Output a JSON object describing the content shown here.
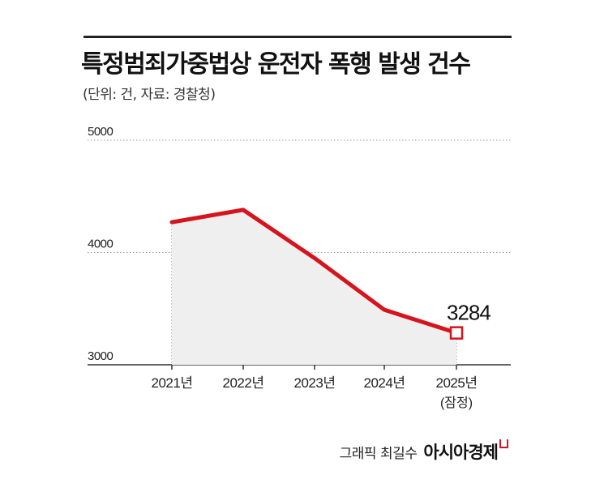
{
  "title": "특정범죄가중법상 운전자 폭행 발생 건수",
  "subtitle": "(단위: 건, 자료: 경찰청)",
  "credit": {
    "author": "그래픽 최길수",
    "logo": "아시아경제"
  },
  "colors": {
    "line": "#d6141d",
    "area": "#efefef",
    "grid": "#999999",
    "axis": "#333333"
  },
  "chart_data": {
    "type": "area",
    "x": [
      "2021년",
      "2022년",
      "2023년",
      "2024년",
      "2025년"
    ],
    "x_sublabels": [
      "",
      "",
      "",
      "",
      "(잠정)"
    ],
    "series": [
      {
        "values": [
          4270,
          4380,
          3950,
          3490,
          3284
        ]
      }
    ],
    "yticks": [
      3000,
      4000,
      5000
    ],
    "ylim": [
      3000,
      5000
    ],
    "annotations": [
      {
        "x": "2025년",
        "label": "3284"
      }
    ],
    "grid": "dotted-horizontal",
    "legend": "none"
  }
}
